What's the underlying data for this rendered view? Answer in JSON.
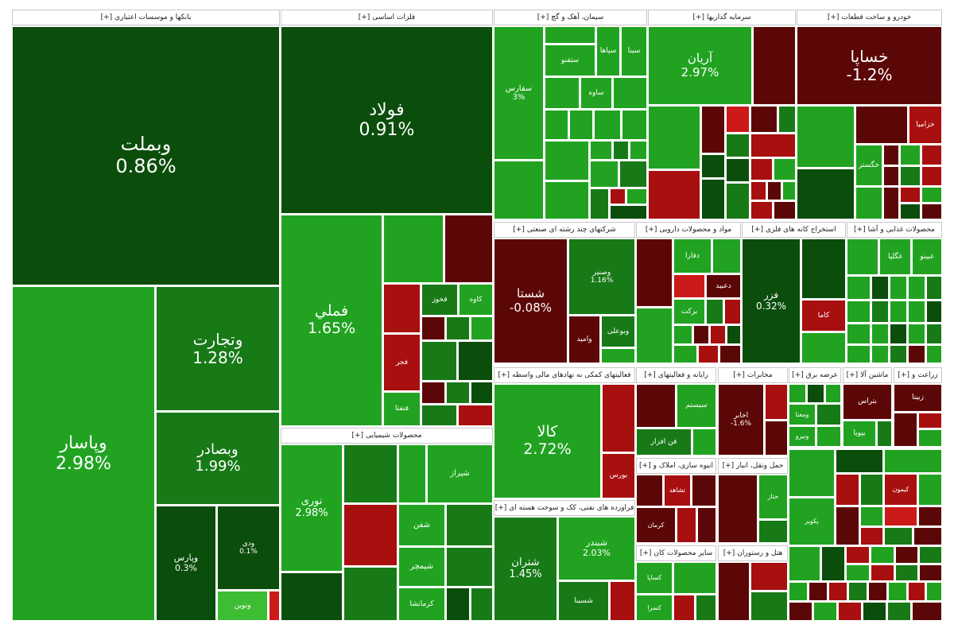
{
  "colors": {
    "dg": "#0b4d0b",
    "g2": "#177a17",
    "g3": "#21a321",
    "lg": "#3dbd33",
    "dr": "#5c0707",
    "rr": "#a80f0f",
    "br": "#cc1a1a"
  },
  "sectors": [
    {
      "name": "بانکها و موسسات اعتباری",
      "plus": "[+]"
    },
    {
      "name": "فلزات اساسی",
      "plus": "[+]"
    },
    {
      "name": "سیمان، آهک و گچ",
      "plus": "[+]"
    },
    {
      "name": "سرمایه گذاریها",
      "plus": "[+]"
    },
    {
      "name": "خودرو و ساخت قطعات",
      "plus": "[+]"
    },
    {
      "name": "شرکتهای چند رشته ای صنعتی",
      "plus": "[+]"
    },
    {
      "name": "مواد و محصولات دارویی",
      "plus": "[+]"
    },
    {
      "name": "استخراج کانه های فلزی",
      "plus": "[+]"
    },
    {
      "name": "محصولات غذایی و آشا",
      "plus": "[+]"
    },
    {
      "name": "محصولات شیمیایی",
      "plus": "[+]"
    },
    {
      "name": "فعالیتهای کمکی به نهادهای مالی واسطه",
      "plus": "[+]"
    },
    {
      "name": "فراورده های نفتی، کک و سوخت هسته ای",
      "plus": "[+]"
    },
    {
      "name": "رایانه و فعالیتهای",
      "plus": "[+]"
    },
    {
      "name": "مخابرات",
      "plus": "[+]"
    },
    {
      "name": "عرضه برق",
      "plus": "[+]"
    },
    {
      "name": "ماشین آلا",
      "plus": "[+]"
    },
    {
      "name": "زراعت و",
      "plus": "[+]"
    },
    {
      "name": "انبوه سازی، املاک و",
      "plus": "[+]"
    },
    {
      "name": "حمل ونقل، انبار",
      "plus": "[+]"
    },
    {
      "name": "سایر محصولات کان",
      "plus": "[+]"
    },
    {
      "name": "هتل و رستوران",
      "plus": "[+]"
    }
  ],
  "tiles": {
    "vbmellat": {
      "sym": "وبملت",
      "chg": "0.86%"
    },
    "vpasar": {
      "sym": "وپاسار",
      "chg": "2.98%"
    },
    "vtejarat": {
      "sym": "وتجارت",
      "chg": "1.28%"
    },
    "vbsader": {
      "sym": "وبصادر",
      "chg": "1.99%"
    },
    "vpars": {
      "sym": "وپارس",
      "chg": "0.3%"
    },
    "vdey": {
      "sym": "ودی",
      "chg": "0.1%"
    },
    "vnovin": {
      "sym": "ونوین",
      "chg": ""
    },
    "foolad": {
      "sym": "فولاد",
      "chg": "0.91%"
    },
    "fameli": {
      "sym": "فملي",
      "chg": "1.65%"
    },
    "fkhooz": {
      "sym": "فخوز",
      "chg": ""
    },
    "kaveh": {
      "sym": "کاوه",
      "chg": ""
    },
    "fjar": {
      "sym": "فجر",
      "chg": ""
    },
    "fnefta": {
      "sym": "فنفتا",
      "chg": ""
    },
    "sfars": {
      "sym": "سفارس",
      "chg": "3%"
    },
    "sfanoo": {
      "sym": "ستفنو",
      "chg": ""
    },
    "sepaha": {
      "sym": "سپاها",
      "chg": ""
    },
    "sina": {
      "sym": "سينا",
      "chg": ""
    },
    "sasaveh": {
      "sym": "ساوه",
      "chg": ""
    },
    "aria": {
      "sym": "آريان",
      "chg": "2.97%"
    },
    "khsapa": {
      "sym": "خساپا",
      "chg": "-1.2%"
    },
    "khzamia": {
      "sym": "خزامیا",
      "chg": ""
    },
    "khgostar": {
      "sym": "خگستر",
      "chg": ""
    },
    "shasta": {
      "sym": "شستا",
      "chg": "-0.08%"
    },
    "vsapir": {
      "sym": "وصنیر",
      "chg": "1.16%"
    },
    "vamid": {
      "sym": "وامید",
      "chg": ""
    },
    "vbuali": {
      "sym": "وبوعلی",
      "chg": ""
    },
    "dfara": {
      "sym": "دفارا",
      "chg": ""
    },
    "dabid": {
      "sym": "دعبيد",
      "chg": ""
    },
    "barkat": {
      "sym": "برکت",
      "chg": ""
    },
    "fezar": {
      "sym": "فزر",
      "chg": "0.32%"
    },
    "kama": {
      "sym": "کاما",
      "chg": ""
    },
    "ghgol": {
      "sym": "غگلپا",
      "chg": ""
    },
    "ghbeno": {
      "sym": "غبينو",
      "chg": ""
    },
    "noori": {
      "sym": "نوری",
      "chg": "2.98%"
    },
    "shiraz": {
      "sym": "شیراز",
      "chg": ""
    },
    "shsfa": {
      "sym": "شفن",
      "chg": ""
    },
    "shpamchar": {
      "sym": "شپمچر",
      "chg": ""
    },
    "krmashi": {
      "sym": "کرمانشا",
      "chg": ""
    },
    "kala": {
      "sym": "کالا",
      "chg": "2.72%"
    },
    "boors": {
      "sym": "بورس",
      "chg": ""
    },
    "shtran": {
      "sym": "شتران",
      "chg": "1.45%"
    },
    "shbandar": {
      "sym": "شبندر",
      "chg": "2.03%"
    },
    "shsina": {
      "sym": "شسینا",
      "chg": ""
    },
    "sistem": {
      "sym": "سیستم",
      "chg": ""
    },
    "faanafrar": {
      "sym": "فن افزار",
      "chg": ""
    },
    "akhaber": {
      "sym": "اخابر",
      "chg": "-1.6%"
    },
    "vmena": {
      "sym": "ومعنا",
      "chg": ""
    },
    "vnoor": {
      "sym": "ونیرو",
      "chg": ""
    },
    "bpars": {
      "sym": "بتراس",
      "chg": ""
    },
    "bsina": {
      "sym": "زبينا",
      "chg": ""
    },
    "bpaya": {
      "sym": "بپویا",
      "chg": ""
    },
    "kermsn": {
      "sym": "کرمان",
      "chg": ""
    },
    "tshahed": {
      "sym": "تشاهد",
      "chg": ""
    },
    "kisaar": {
      "sym": "کساپا",
      "chg": ""
    },
    "kisra": {
      "sym": "کسرا",
      "chg": ""
    },
    "hpeikar": {
      "sym": "پکویر",
      "chg": ""
    },
    "kimoon": {
      "sym": "کیمون",
      "chg": ""
    },
    "hesab": {
      "sym": "حتاز",
      "chg": ""
    }
  }
}
